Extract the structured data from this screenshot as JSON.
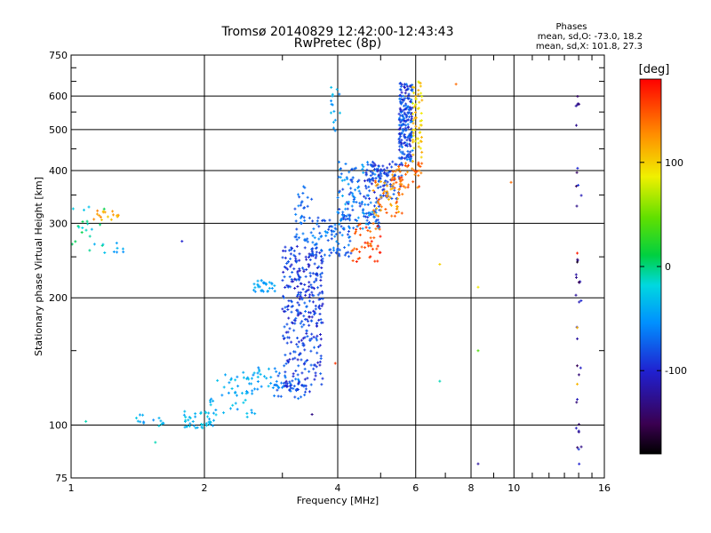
{
  "chart_data": {
    "type": "scatter",
    "title": "Tromsø 20140829 12:42:00-12:43:43",
    "subtitle": "RwPretec (8p)",
    "xlabel": "Frequency [MHz]",
    "ylabel": "Stationary phase Virtual Height [km]",
    "xscale": "log",
    "yscale": "log",
    "xlim": [
      1,
      16
    ],
    "ylim": [
      75,
      750
    ],
    "grid": true,
    "xticks": [
      1,
      2,
      4,
      6,
      8,
      10,
      16
    ],
    "xtick_labels": [
      "1",
      "2",
      "4",
      "6",
      "8",
      "10",
      "16"
    ],
    "xminor_ticks": [
      3,
      5,
      7,
      9,
      11,
      12,
      13,
      14,
      15
    ],
    "yticks": [
      75,
      100,
      200,
      300,
      400,
      500,
      600,
      750
    ],
    "ytick_labels": [
      "75",
      "100",
      "200",
      "300",
      "400",
      "500",
      "600",
      "750"
    ],
    "yminor_ticks": [
      150,
      250,
      350,
      450,
      550,
      650,
      700
    ],
    "phase_info": {
      "heading": "Phases",
      "line_o": "mean, sd,O: -73.0, 18.2",
      "line_x": "mean, sd,X: 101.8, 27.3"
    },
    "colorbar": {
      "label": "[deg]",
      "range": [
        -180,
        180
      ],
      "ticks": [
        100,
        0,
        -100
      ],
      "tick_labels": [
        "100",
        "0",
        "-100"
      ]
    },
    "series": [
      {
        "role": "echo-clusters",
        "clusters": [
          {
            "f": [
              1.0,
              1.2
            ],
            "h": [
              255,
              330
            ],
            "ph": [
              -40,
              10
            ],
            "n": 22
          },
          {
            "f": [
              1.12,
              1.3
            ],
            "h": [
              305,
              322
            ],
            "ph": [
              100,
              140
            ],
            "n": 18
          },
          {
            "f": [
              1.25,
              1.32
            ],
            "h": [
              255,
              270
            ],
            "ph": [
              -60,
              -30
            ],
            "n": 6
          },
          {
            "f": [
              1.4,
              1.65
            ],
            "h": [
              99,
              106
            ],
            "ph": [
              -60,
              -20
            ],
            "n": 14
          },
          {
            "f": [
              1.8,
              2.1
            ],
            "h": [
              98,
              108
            ],
            "ph": [
              -50,
              -20
            ],
            "n": 40
          },
          {
            "f": [
              2.05,
              2.6
            ],
            "h": [
              104,
              135
            ],
            "ph": [
              -55,
              -25
            ],
            "n": 45
          },
          {
            "f": [
              2.55,
              2.95
            ],
            "h": [
              120,
              138
            ],
            "ph": [
              -60,
              -30
            ],
            "n": 25
          },
          {
            "f": [
              2.55,
              2.9
            ],
            "h": [
              205,
              220
            ],
            "ph": [
              -55,
              -35
            ],
            "n": 30
          },
          {
            "f": [
              2.8,
              3.4
            ],
            "h": [
              115,
              135
            ],
            "ph": [
              -90,
              -50
            ],
            "n": 40
          },
          {
            "f": [
              3.0,
              3.7
            ],
            "h": [
              120,
              195
            ],
            "ph": [
              -110,
              -70
            ],
            "n": 180
          },
          {
            "f": [
              3.0,
              3.7
            ],
            "h": [
              195,
              265
            ],
            "ph": [
              -110,
              -70
            ],
            "n": 150
          },
          {
            "f": [
              3.2,
              3.5
            ],
            "h": [
              270,
              370
            ],
            "ph": [
              -85,
              -60
            ],
            "n": 40
          },
          {
            "f": [
              3.5,
              4.3
            ],
            "h": [
              250,
              310
            ],
            "ph": [
              -90,
              -50
            ],
            "n": 90
          },
          {
            "f": [
              4.0,
              5.0
            ],
            "h": [
              290,
              420
            ],
            "ph": [
              -95,
              -40
            ],
            "n": 150
          },
          {
            "f": [
              4.6,
              5.6
            ],
            "h": [
              340,
              420
            ],
            "ph": [
              -110,
              -70
            ],
            "n": 100
          },
          {
            "f": [
              4.3,
              5.0
            ],
            "h": [
              240,
              300
            ],
            "ph": [
              130,
              175
            ],
            "n": 45
          },
          {
            "f": [
              4.8,
              5.6
            ],
            "h": [
              310,
              380
            ],
            "ph": [
              110,
              150
            ],
            "n": 55
          },
          {
            "f": [
              5.3,
              6.2
            ],
            "h": [
              360,
              420
            ],
            "ph": [
              120,
              160
            ],
            "n": 50
          },
          {
            "f": [
              5.5,
              5.9
            ],
            "h": [
              420,
              650
            ],
            "ph": [
              -110,
              -60
            ],
            "n": 200
          },
          {
            "f": [
              5.9,
              6.2
            ],
            "h": [
              420,
              650
            ],
            "ph": [
              80,
              120
            ],
            "n": 60
          },
          {
            "f": [
              3.85,
              4.05
            ],
            "h": [
              480,
              640
            ],
            "ph": [
              -60,
              -30
            ],
            "n": 15
          },
          {
            "f": [
              13.8,
              14.2
            ],
            "h": [
              80,
              620
            ],
            "ph": [
              -150,
              -90
            ],
            "n": 35
          }
        ]
      },
      {
        "role": "isolated-echoes",
        "points": [
          {
            "f": 1.78,
            "h": 272,
            "ph": -100
          },
          {
            "f": 1.08,
            "h": 102,
            "ph": -10
          },
          {
            "f": 1.55,
            "h": 91,
            "ph": -10
          },
          {
            "f": 3.5,
            "h": 106,
            "ph": -130
          },
          {
            "f": 3.95,
            "h": 140,
            "ph": 160
          },
          {
            "f": 3.45,
            "h": 180,
            "ph": -120
          },
          {
            "f": 6.8,
            "h": 240,
            "ph": 100
          },
          {
            "f": 6.8,
            "h": 127,
            "ph": -10
          },
          {
            "f": 7.4,
            "h": 640,
            "ph": 140
          },
          {
            "f": 8.3,
            "h": 212,
            "ph": 90
          },
          {
            "f": 8.3,
            "h": 150,
            "ph": 40
          },
          {
            "f": 8.3,
            "h": 81,
            "ph": -120
          },
          {
            "f": 9.85,
            "h": 375,
            "ph": 140
          },
          {
            "f": 13.9,
            "h": 170,
            "ph": 110
          },
          {
            "f": 13.9,
            "h": 160,
            "ph": -120
          },
          {
            "f": 13.9,
            "h": 125,
            "ph": 110
          },
          {
            "f": 13.9,
            "h": 115,
            "ph": -110
          },
          {
            "f": 13.9,
            "h": 243,
            "ph": -170
          },
          {
            "f": 13.9,
            "h": 255,
            "ph": 170
          }
        ]
      }
    ]
  }
}
